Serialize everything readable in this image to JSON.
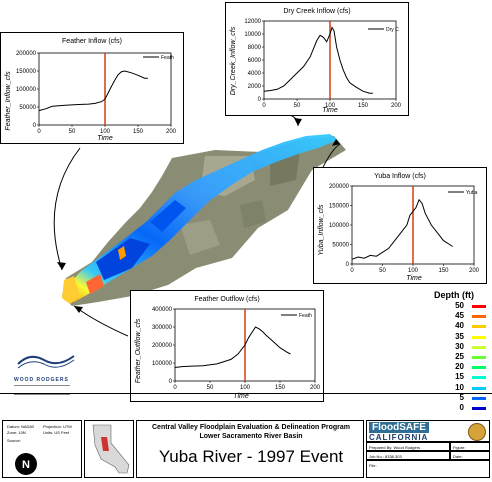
{
  "charts": [
    {
      "id": "feather-inflow",
      "title": "Feather Inflow (cfs)",
      "ylabel": "Feather_Inflow_cfs",
      "xlabel": "Time",
      "legend": "Feath",
      "yticks": [
        "200000",
        "150000",
        "100000",
        "50000",
        "0"
      ],
      "xticks": [
        "0",
        "50",
        "100",
        "150",
        "200"
      ]
    },
    {
      "id": "dry-creek-inflow",
      "title": "Dry Creek Inflow (cfs)",
      "ylabel": "Dry_Creek_Inflow_cfs",
      "xlabel": "Time",
      "legend": "Dry C",
      "yticks": [
        "12000",
        "10000",
        "8000",
        "6000",
        "4000",
        "2000",
        "0"
      ],
      "xticks": [
        "0",
        "50",
        "100",
        "150",
        "200"
      ]
    },
    {
      "id": "yuba-inflow",
      "title": "Yuba Inflow (cfs)",
      "ylabel": "Yuba_Inflow_cfs",
      "xlabel": "Time",
      "legend": "Yuba",
      "yticks": [
        "200000",
        "150000",
        "100000",
        "50000",
        "0"
      ],
      "xticks": [
        "0",
        "50",
        "100",
        "150",
        "200"
      ]
    },
    {
      "id": "feather-outflow",
      "title": "Feather Outflow (cfs)",
      "ylabel": "Feather_Outflow_cfs",
      "xlabel": "Time",
      "legend": "Feath",
      "yticks": [
        "400000",
        "300000",
        "200000",
        "100000",
        "0"
      ],
      "xticks": [
        "0",
        "50",
        "100",
        "150",
        "200"
      ]
    }
  ],
  "chart_data": [
    {
      "type": "line",
      "title": "Feather Inflow (cfs)",
      "xlabel": "Time",
      "ylabel": "Feather_Inflow_cfs",
      "xlim": [
        0,
        200
      ],
      "ylim": [
        0,
        200000
      ],
      "marker_x": 100,
      "series": [
        {
          "name": "Feath",
          "x": [
            0,
            10,
            20,
            40,
            60,
            75,
            85,
            95,
            100,
            105,
            110,
            115,
            120,
            125,
            130,
            140,
            150,
            160,
            165
          ],
          "y": [
            40000,
            45000,
            52000,
            55000,
            57000,
            58000,
            60000,
            65000,
            72000,
            90000,
            108000,
            125000,
            140000,
            148000,
            150000,
            145000,
            138000,
            130000,
            130000
          ]
        }
      ]
    },
    {
      "type": "line",
      "title": "Dry Creek Inflow (cfs)",
      "xlabel": "Time",
      "ylabel": "Dry_Creek_Inflow_cfs",
      "xlim": [
        0,
        200
      ],
      "ylim": [
        0,
        12000
      ],
      "marker_x": 100,
      "series": [
        {
          "name": "Dry C",
          "x": [
            0,
            10,
            20,
            30,
            40,
            50,
            60,
            70,
            80,
            85,
            90,
            95,
            100,
            103,
            106,
            110,
            115,
            120,
            125,
            130,
            140,
            150,
            160,
            165
          ],
          "y": [
            1200,
            1300,
            1500,
            2000,
            3000,
            4000,
            5000,
            6500,
            9000,
            9800,
            9500,
            8800,
            10000,
            11000,
            10500,
            8000,
            6000,
            4500,
            3300,
            2500,
            1800,
            1200,
            900,
            900
          ]
        }
      ]
    },
    {
      "type": "line",
      "title": "Yuba Inflow (cfs)",
      "xlabel": "Time",
      "ylabel": "Yuba_Inflow_cfs",
      "xlim": [
        0,
        200
      ],
      "ylim": [
        0,
        200000
      ],
      "marker_x": 100,
      "series": [
        {
          "name": "Yuba",
          "x": [
            0,
            10,
            20,
            30,
            40,
            50,
            60,
            70,
            80,
            85,
            90,
            95,
            100,
            105,
            110,
            115,
            120,
            125,
            130,
            140,
            150,
            160,
            165
          ],
          "y": [
            12000,
            18000,
            15000,
            22000,
            20000,
            30000,
            40000,
            60000,
            80000,
            90000,
            100000,
            125000,
            135000,
            145000,
            165000,
            155000,
            130000,
            115000,
            100000,
            80000,
            60000,
            50000,
            45000
          ]
        }
      ]
    },
    {
      "type": "line",
      "title": "Feather Outflow (cfs)",
      "xlabel": "Time",
      "ylabel": "Feather_Outflow_cfs",
      "xlim": [
        0,
        200
      ],
      "ylim": [
        0,
        400000
      ],
      "marker_x": 100,
      "series": [
        {
          "name": "Feath",
          "x": [
            0,
            10,
            20,
            40,
            60,
            80,
            90,
            100,
            105,
            110,
            115,
            120,
            125,
            130,
            140,
            150,
            160,
            165
          ],
          "y": [
            75000,
            80000,
            82000,
            85000,
            95000,
            120000,
            150000,
            200000,
            240000,
            270000,
            300000,
            290000,
            275000,
            255000,
            220000,
            185000,
            160000,
            150000
          ]
        }
      ]
    }
  ],
  "legend": {
    "title": "Depth (ft)",
    "items": [
      {
        "value": "50",
        "color": "#ff0000"
      },
      {
        "value": "45",
        "color": "#ff6600"
      },
      {
        "value": "40",
        "color": "#ffcc00"
      },
      {
        "value": "35",
        "color": "#ffff00"
      },
      {
        "value": "30",
        "color": "#ccff33"
      },
      {
        "value": "25",
        "color": "#66ff33"
      },
      {
        "value": "20",
        "color": "#00ff66"
      },
      {
        "value": "15",
        "color": "#00ffcc"
      },
      {
        "value": "10",
        "color": "#00ccff"
      },
      {
        "value": "5",
        "color": "#0066ff"
      },
      {
        "value": "0",
        "color": "#0000cc"
      }
    ]
  },
  "logo": {
    "name": "WOOD RODGERS"
  },
  "title_block": {
    "program": "Central Valley Floodplain Evaluation & Delineation Program",
    "basin": "Lower Sacramento River Basin",
    "event_title": "Yuba River - 1997 Event",
    "floodsafe": "FloodSAFE",
    "california": "CALIFORNIA",
    "prepared": "Prepared By: Wood Rodgers",
    "figure": "Figure:",
    "job": "Job No.: 8338.303",
    "date": "Date:",
    "file": "File:",
    "datum": "Datum: NAD83",
    "zone": "Zone: 10N",
    "projection": "Projection: UTM",
    "units": "Units: US Feet",
    "source": "Source:"
  },
  "colors": {
    "hydrograph": "#000000",
    "marker": "#cc3300",
    "arrow": "#000000"
  }
}
